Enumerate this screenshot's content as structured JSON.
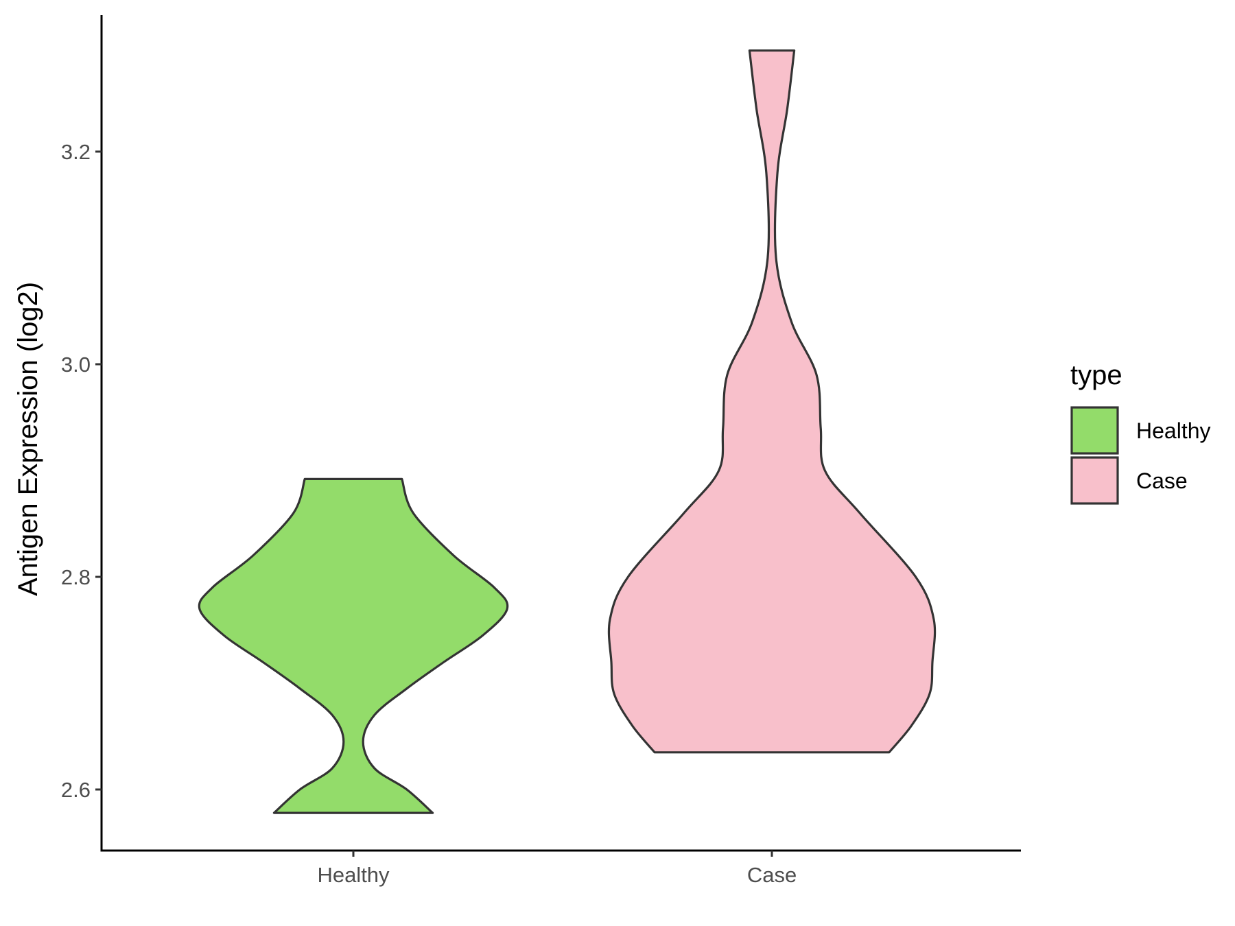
{
  "chart_data": {
    "type": "violin",
    "ylabel": "Antigen Expression (log2)",
    "xlabel": "",
    "categories": [
      "Healthy",
      "Case"
    ],
    "ylim": [
      2.54,
      3.33
    ],
    "yticks": [
      2.6,
      2.8,
      3.0,
      3.2
    ],
    "ytick_labels": [
      "2.6",
      "2.8",
      "3.0",
      "3.2"
    ],
    "grid": false,
    "legend": {
      "title": "type",
      "position": "right",
      "items": [
        {
          "label": "Healthy",
          "color": "#93DC6A"
        },
        {
          "label": "Case",
          "color": "#F8C0CB"
        }
      ]
    },
    "series": [
      {
        "name": "Healthy",
        "color": "#93DC6A",
        "min": 2.578,
        "max": 2.892,
        "density_profile": [
          [
            2.578,
            0.49
          ],
          [
            2.6,
            0.33
          ],
          [
            2.62,
            0.13
          ],
          [
            2.645,
            0.06
          ],
          [
            2.67,
            0.13
          ],
          [
            2.695,
            0.33
          ],
          [
            2.72,
            0.56
          ],
          [
            2.745,
            0.8
          ],
          [
            2.77,
            0.95
          ],
          [
            2.79,
            0.87
          ],
          [
            2.82,
            0.62
          ],
          [
            2.86,
            0.37
          ],
          [
            2.892,
            0.3
          ]
        ]
      },
      {
        "name": "Case",
        "color": "#F8C0CB",
        "min": 2.635,
        "max": 3.295,
        "density_profile": [
          [
            2.635,
            0.84
          ],
          [
            2.66,
            1.0
          ],
          [
            2.69,
            1.13
          ],
          [
            2.72,
            1.15
          ],
          [
            2.76,
            1.16
          ],
          [
            2.8,
            1.03
          ],
          [
            2.86,
            0.63
          ],
          [
            2.9,
            0.38
          ],
          [
            2.94,
            0.35
          ],
          [
            2.99,
            0.32
          ],
          [
            3.04,
            0.14
          ],
          [
            3.1,
            0.03
          ],
          [
            3.18,
            0.04
          ],
          [
            3.24,
            0.11
          ],
          [
            3.295,
            0.16
          ]
        ]
      }
    ]
  }
}
